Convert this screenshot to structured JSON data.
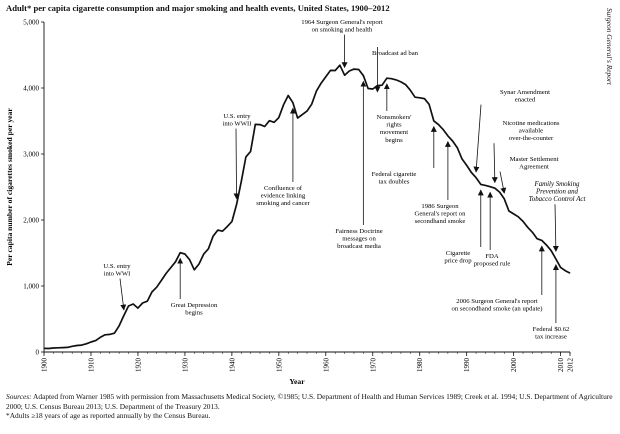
{
  "header": {
    "title": "Adult* per capita cigarette consumption and major smoking and health events, United States, 1900–2012",
    "side_label": "Surgeon General's Report"
  },
  "chart_data": {
    "type": "line",
    "title": "Adult* per capita cigarette consumption and major smoking and health events, United States, 1900–2012",
    "xlabel": "Year",
    "ylabel": "Per capita number of cigarettes smoked per year",
    "xlim": [
      1900,
      2012
    ],
    "ylim": [
      0,
      5000
    ],
    "x_ticks": [
      "1900",
      "1910",
      "1920",
      "1930",
      "1940",
      "1950",
      "1960",
      "1970",
      "1980",
      "1990",
      "2000",
      "2010",
      "2012"
    ],
    "y_ticks": [
      "0",
      "1,000",
      "2,000",
      "3,000",
      "4,000",
      "5,000"
    ],
    "series": [
      {
        "name": "Per capita cigarette consumption",
        "points": [
          [
            1900,
            54
          ],
          [
            1901,
            53
          ],
          [
            1902,
            60
          ],
          [
            1903,
            64
          ],
          [
            1904,
            66
          ],
          [
            1905,
            70
          ],
          [
            1906,
            86
          ],
          [
            1907,
            99
          ],
          [
            1908,
            105
          ],
          [
            1909,
            125
          ],
          [
            1910,
            151
          ],
          [
            1911,
            173
          ],
          [
            1912,
            223
          ],
          [
            1913,
            260
          ],
          [
            1914,
            267
          ],
          [
            1915,
            285
          ],
          [
            1916,
            395
          ],
          [
            1917,
            551
          ],
          [
            1918,
            697
          ],
          [
            1919,
            727
          ],
          [
            1920,
            665
          ],
          [
            1921,
            742
          ],
          [
            1922,
            770
          ],
          [
            1923,
            911
          ],
          [
            1924,
            982
          ],
          [
            1925,
            1085
          ],
          [
            1926,
            1191
          ],
          [
            1927,
            1279
          ],
          [
            1928,
            1366
          ],
          [
            1929,
            1504
          ],
          [
            1930,
            1485
          ],
          [
            1931,
            1399
          ],
          [
            1932,
            1245
          ],
          [
            1933,
            1334
          ],
          [
            1934,
            1483
          ],
          [
            1935,
            1564
          ],
          [
            1936,
            1754
          ],
          [
            1937,
            1847
          ],
          [
            1938,
            1830
          ],
          [
            1939,
            1900
          ],
          [
            1940,
            1976
          ],
          [
            1941,
            2236
          ],
          [
            1942,
            2585
          ],
          [
            1943,
            2956
          ],
          [
            1944,
            3039
          ],
          [
            1945,
            3449
          ],
          [
            1946,
            3446
          ],
          [
            1947,
            3416
          ],
          [
            1948,
            3505
          ],
          [
            1949,
            3480
          ],
          [
            1950,
            3552
          ],
          [
            1951,
            3744
          ],
          [
            1952,
            3886
          ],
          [
            1953,
            3778
          ],
          [
            1954,
            3546
          ],
          [
            1955,
            3597
          ],
          [
            1956,
            3650
          ],
          [
            1957,
            3755
          ],
          [
            1958,
            3953
          ],
          [
            1959,
            4073
          ],
          [
            1960,
            4171
          ],
          [
            1961,
            4266
          ],
          [
            1962,
            4265
          ],
          [
            1963,
            4345
          ],
          [
            1964,
            4194
          ],
          [
            1965,
            4258
          ],
          [
            1966,
            4287
          ],
          [
            1967,
            4280
          ],
          [
            1968,
            4186
          ],
          [
            1969,
            3993
          ],
          [
            1970,
            3985
          ],
          [
            1971,
            4037
          ],
          [
            1972,
            4043
          ],
          [
            1973,
            4148
          ],
          [
            1974,
            4141
          ],
          [
            1975,
            4123
          ],
          [
            1976,
            4092
          ],
          [
            1977,
            4051
          ],
          [
            1978,
            3967
          ],
          [
            1979,
            3861
          ],
          [
            1980,
            3851
          ],
          [
            1981,
            3840
          ],
          [
            1982,
            3753
          ],
          [
            1983,
            3502
          ],
          [
            1984,
            3446
          ],
          [
            1985,
            3370
          ],
          [
            1986,
            3274
          ],
          [
            1987,
            3197
          ],
          [
            1988,
            3096
          ],
          [
            1989,
            2926
          ],
          [
            1990,
            2827
          ],
          [
            1991,
            2720
          ],
          [
            1992,
            2641
          ],
          [
            1993,
            2539
          ],
          [
            1994,
            2524
          ],
          [
            1995,
            2505
          ],
          [
            1996,
            2482
          ],
          [
            1997,
            2423
          ],
          [
            1998,
            2320
          ],
          [
            1999,
            2136
          ],
          [
            2000,
            2092
          ],
          [
            2001,
            2049
          ],
          [
            2002,
            1979
          ],
          [
            2003,
            1890
          ],
          [
            2004,
            1814
          ],
          [
            2005,
            1716
          ],
          [
            2006,
            1691
          ],
          [
            2007,
            1619
          ],
          [
            2008,
            1535
          ],
          [
            2009,
            1409
          ],
          [
            2010,
            1282
          ],
          [
            2011,
            1232
          ],
          [
            2012,
            1196
          ]
        ]
      }
    ],
    "annotations": [
      {
        "text": [
          "1964 Surgeon General's report",
          "on smoking and health"
        ],
        "year": 1964
      },
      {
        "text": [
          "Broadcast ad ban"
        ],
        "year": 1971
      },
      {
        "text": [
          "U.S. entry",
          "into WWII"
        ],
        "year": 1941
      },
      {
        "text": [
          "Nonsmokers'",
          "rights",
          "movement",
          "begins"
        ],
        "year": 1973
      },
      {
        "text": [
          "Synar Amendment",
          "enacted"
        ],
        "year": 1992
      },
      {
        "text": [
          "Nicotine medications",
          "available",
          "over-the-counter"
        ],
        "year": 1996
      },
      {
        "text": [
          "Master Settlement",
          "Agreement"
        ],
        "year": 1998
      },
      {
        "text": [
          "Confluence of",
          "evidence linking",
          "smoking and cancer"
        ],
        "year": 1953
      },
      {
        "text": [
          "Federal cigarette",
          "tax doubles"
        ],
        "year": 1983
      },
      {
        "text": [
          "Family Smoking",
          "Prevention and",
          "Tobacco Control Act"
        ],
        "year": 2009,
        "italic": true
      },
      {
        "text": [
          "1986 Surgeon",
          "General's report on",
          "secondhand smoke"
        ],
        "year": 1986
      },
      {
        "text": [
          "U.S. entry",
          "into WWI"
        ],
        "year": 1917
      },
      {
        "text": [
          "Fairness Doctrine",
          "messages on",
          "broadcast media"
        ],
        "year": 1968
      },
      {
        "text": [
          "Cigarette",
          "price drop"
        ],
        "year": 1993
      },
      {
        "text": [
          "FDA",
          "proposed rule"
        ],
        "year": 1995
      },
      {
        "text": [
          "Great Depression",
          "begins"
        ],
        "year": 1929
      },
      {
        "text": [
          "2006 Surgeon General's report",
          "on secondhand smoke (an update)"
        ],
        "year": 2006
      },
      {
        "text": [
          "Federal $0.62",
          "tax increase"
        ],
        "year": 2009
      }
    ]
  },
  "notes": {
    "sources_label": "Sources:",
    "sources_text": " Adapted from Warner 1985 with permission from Massachusetts Medical Society, ©1985; U.S. Department of Health and Human Services 1989; Creek et al. 1994; U.S. Department of Agriculture 2000; U.S. Census Bureau 2013; U.S. Department of the Treasury 2013.",
    "footnote": "*Adults ≥18 years of age as reported annually by the Census Bureau."
  }
}
